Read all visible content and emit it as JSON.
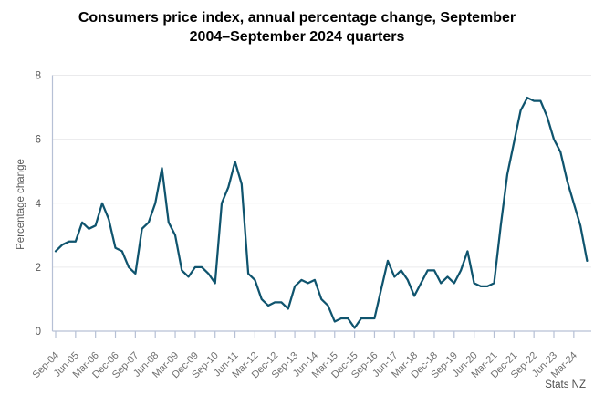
{
  "title": {
    "line1": "Consumers price index, annual percentage change, September",
    "line2": "2004–September 2024 quarters"
  },
  "source": "Stats NZ",
  "chart_data": {
    "type": "line",
    "title": "Consumers price index, annual percentage change, September 2004–September 2024 quarters",
    "xlabel": "",
    "ylabel": "Percentage change",
    "ylim": [
      0,
      8
    ],
    "yticks": [
      0,
      2,
      4,
      6,
      8
    ],
    "x_tick_label_every": 3,
    "grid": "horizontal",
    "legend": "none",
    "categories": [
      "Sep-04",
      "Dec-04",
      "Mar-05",
      "Jun-05",
      "Sep-05",
      "Dec-05",
      "Mar-06",
      "Jun-06",
      "Sep-06",
      "Dec-06",
      "Mar-07",
      "Jun-07",
      "Sep-07",
      "Dec-07",
      "Mar-08",
      "Jun-08",
      "Sep-08",
      "Dec-08",
      "Mar-09",
      "Jun-09",
      "Sep-09",
      "Dec-09",
      "Mar-10",
      "Jun-10",
      "Sep-10",
      "Dec-10",
      "Mar-11",
      "Jun-11",
      "Sep-11",
      "Dec-11",
      "Mar-12",
      "Jun-12",
      "Sep-12",
      "Dec-12",
      "Mar-13",
      "Jun-13",
      "Sep-13",
      "Dec-13",
      "Mar-14",
      "Jun-14",
      "Sep-14",
      "Dec-14",
      "Mar-15",
      "Jun-15",
      "Sep-15",
      "Dec-15",
      "Mar-16",
      "Jun-16",
      "Sep-16",
      "Dec-16",
      "Mar-17",
      "Jun-17",
      "Sep-17",
      "Dec-17",
      "Mar-18",
      "Jun-18",
      "Sep-18",
      "Dec-18",
      "Mar-19",
      "Jun-19",
      "Sep-19",
      "Dec-19",
      "Mar-20",
      "Jun-20",
      "Sep-20",
      "Dec-20",
      "Mar-21",
      "Jun-21",
      "Sep-21",
      "Dec-21",
      "Mar-22",
      "Jun-22",
      "Sep-22",
      "Dec-22",
      "Mar-23",
      "Jun-23",
      "Sep-23",
      "Dec-23",
      "Mar-24",
      "Jun-24",
      "Sep-24"
    ],
    "values": [
      2.5,
      2.7,
      2.8,
      2.8,
      3.4,
      3.2,
      3.3,
      4.0,
      3.5,
      2.6,
      2.5,
      2.0,
      1.8,
      3.2,
      3.4,
      4.0,
      5.1,
      3.4,
      3.0,
      1.9,
      1.7,
      2.0,
      2.0,
      1.8,
      1.5,
      4.0,
      4.5,
      5.3,
      4.6,
      1.8,
      1.6,
      1.0,
      0.8,
      0.9,
      0.9,
      0.7,
      1.4,
      1.6,
      1.5,
      1.6,
      1.0,
      0.8,
      0.3,
      0.4,
      0.4,
      0.1,
      0.4,
      0.4,
      0.4,
      1.3,
      2.2,
      1.7,
      1.9,
      1.6,
      1.1,
      1.5,
      1.9,
      1.9,
      1.5,
      1.7,
      1.5,
      1.9,
      2.5,
      1.5,
      1.4,
      1.4,
      1.5,
      3.3,
      4.9,
      5.9,
      6.9,
      7.3,
      7.2,
      7.2,
      6.7,
      6.0,
      5.6,
      4.7,
      4.0,
      3.3,
      2.2
    ],
    "colors": {
      "line": "#0F546E",
      "axis": "#B6C0D5",
      "grid": "#EAEAEC",
      "tick_label": "#6F6F6F",
      "axis_label": "#595959",
      "title": "#000000"
    }
  }
}
